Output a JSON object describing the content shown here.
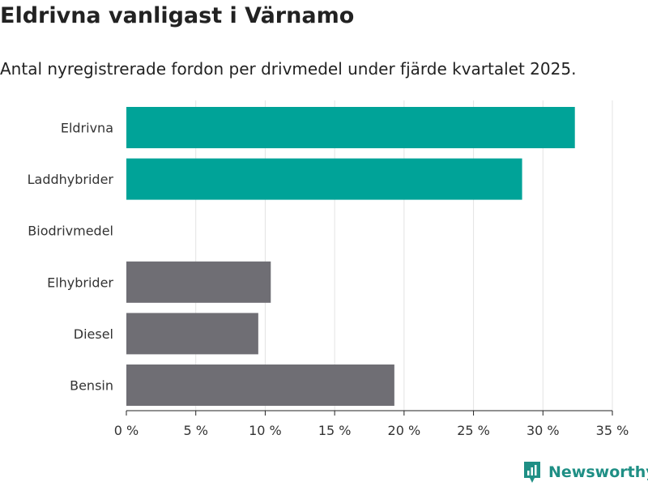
{
  "header": {
    "title": "Eldrivna vanligast i Värnamo",
    "subtitle": "Antal nyregistrerade fordon per drivmedel under fjärde kvartalet 2025."
  },
  "brand": {
    "name": "Newsworthy",
    "color": "#1f8f85"
  },
  "colors": {
    "highlight": "#00a398",
    "default": "#6f6e74",
    "grid": "#e3e3e3",
    "axis": "#222222"
  },
  "chart_data": {
    "type": "bar",
    "orientation": "horizontal",
    "categories": [
      "Eldrivna",
      "Laddhybrider",
      "Biodrivmedel",
      "Elhybrider",
      "Diesel",
      "Bensin"
    ],
    "values": [
      32.3,
      28.5,
      0,
      10.4,
      9.5,
      19.3
    ],
    "highlighted": [
      true,
      true,
      false,
      false,
      false,
      false
    ],
    "xlim": [
      0,
      35
    ],
    "xticks": [
      0,
      5,
      10,
      15,
      20,
      25,
      30,
      35
    ],
    "xtick_labels": [
      "0 %",
      "5 %",
      "10 %",
      "15 %",
      "20 %",
      "25 %",
      "30 %",
      "35 %"
    ],
    "xlabel": "",
    "ylabel": "",
    "grid": true
  }
}
